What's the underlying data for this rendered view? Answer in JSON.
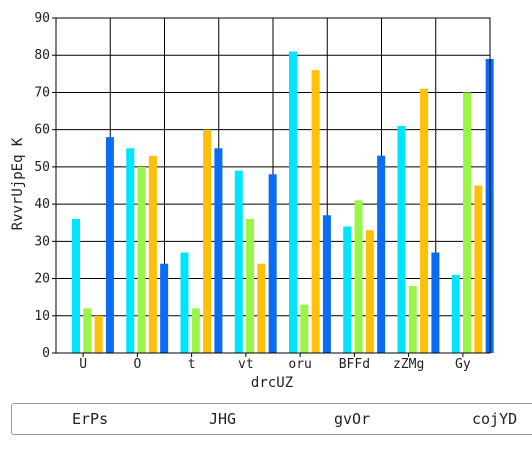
{
  "chart_data": {
    "type": "bar",
    "title": "",
    "xlabel": "drcUZ",
    "ylabel": "RvvrUjpEq K",
    "ylim": [
      0,
      90
    ],
    "yticks": [
      0,
      10,
      20,
      30,
      40,
      50,
      60,
      70,
      80,
      90
    ],
    "grid": true,
    "legend_position": "bottom",
    "categories": [
      "U",
      "O",
      "t",
      "vt",
      "oru",
      "BFFd",
      "zZMg",
      "Gy"
    ],
    "series": [
      {
        "name": "ErPs",
        "color": "#00e5ff",
        "values": [
          36,
          55,
          27,
          49,
          81,
          34,
          61,
          21
        ]
      },
      {
        "name": "JHG",
        "color": "#99f548",
        "values": [
          12,
          50,
          12,
          36,
          13,
          41,
          18,
          70
        ]
      },
      {
        "name": "gvOr",
        "color": "#ffc107",
        "values": [
          10,
          53,
          60,
          24,
          76,
          33,
          71,
          45
        ]
      },
      {
        "name": "cojYD",
        "color": "#0a6cf5",
        "values": [
          58,
          24,
          55,
          48,
          37,
          53,
          27,
          79
        ]
      }
    ]
  }
}
